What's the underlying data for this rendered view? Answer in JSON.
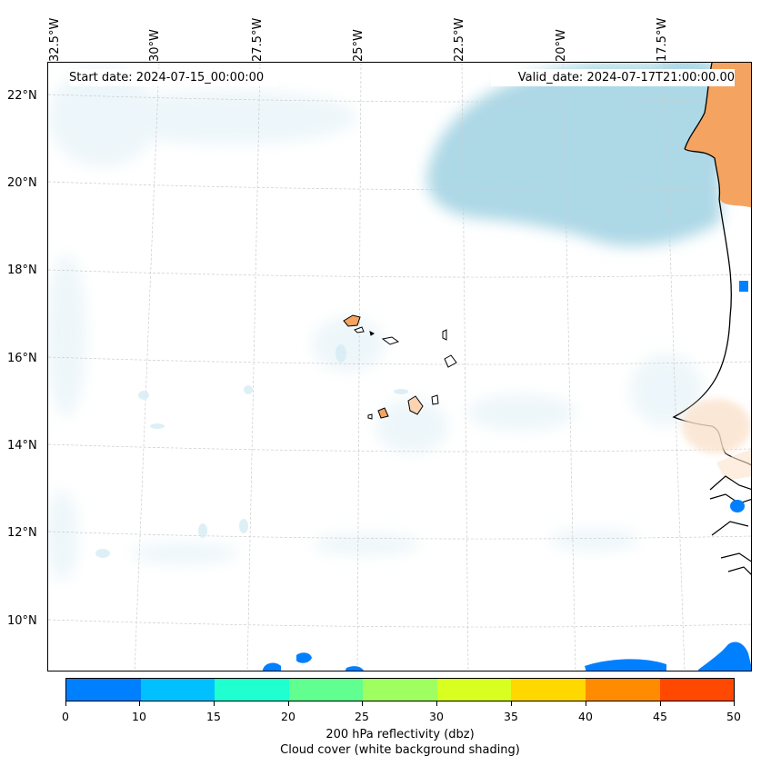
{
  "map": {
    "start_date": "Start date: 2024-07-15_00:00:00",
    "valid_date": "Valid_date: 2024-07-17T21:00:00.00",
    "longitude_labels": [
      "32.5°W",
      "30°W",
      "27.5°W",
      "25°W",
      "22.5°W",
      "20°W",
      "17.5°W"
    ],
    "latitude_labels": [
      "22°N",
      "20°N",
      "18°N",
      "16°N",
      "14°N",
      "12°N",
      "10°N"
    ],
    "land_color": "#f4a460",
    "cloud_color": "#add8e6"
  },
  "colorbar": {
    "ticks": [
      "0",
      "10",
      "15",
      "20",
      "25",
      "30",
      "35",
      "40",
      "45",
      "50"
    ],
    "colors": [
      "#0080ff",
      "#00c0ff",
      "#20ffd0",
      "#60ff90",
      "#a0ff60",
      "#d8ff20",
      "#ffd800",
      "#ff8c00",
      "#ff4800"
    ],
    "label": "200 hPa reflectivity (dbz)",
    "sublabel": "Cloud cover (white background shading)"
  }
}
